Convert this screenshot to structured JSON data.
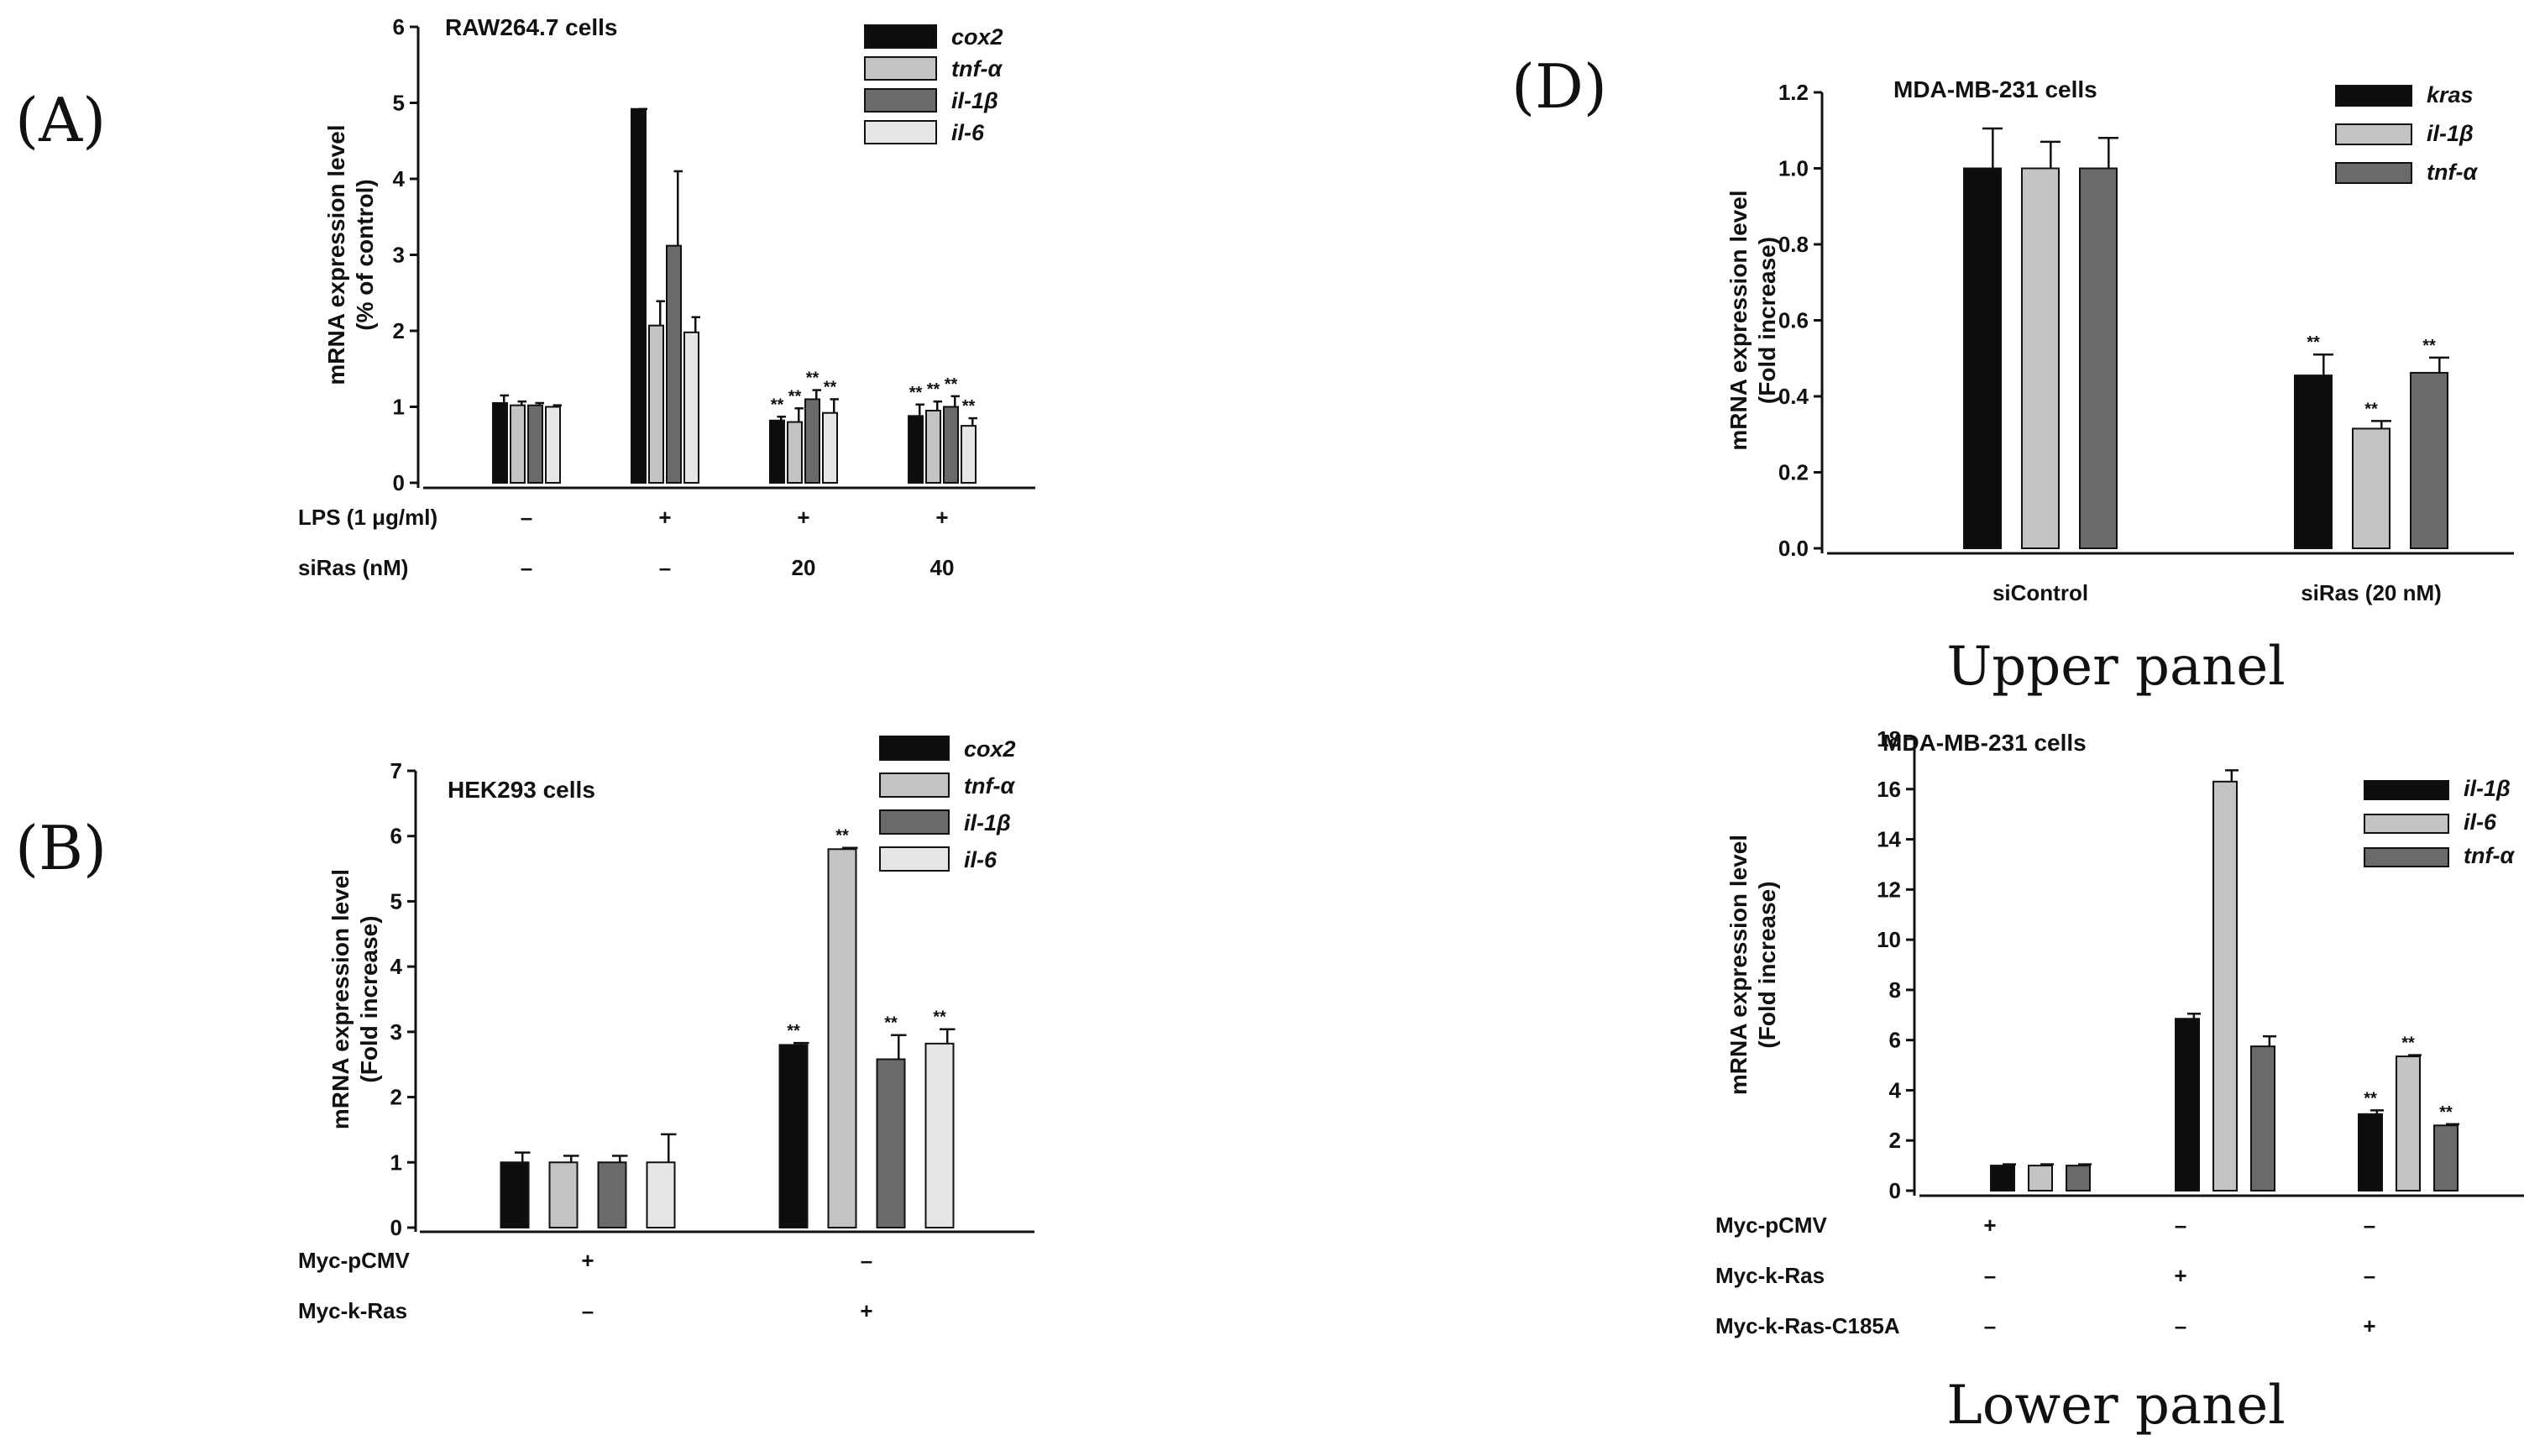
{
  "panel_letters": {
    "a": "(A)",
    "b": "(B)",
    "d": "(D)"
  },
  "captions": {
    "upper": "Upper panel",
    "lower": "Lower panel"
  },
  "colors": {
    "black": "#0d0d0d",
    "light_gray": "#c4c4c4",
    "dark_gray": "#6a6a6a",
    "lightest_gray": "#e6e6e6"
  },
  "chart_data": [
    {
      "id": "A",
      "type": "bar",
      "title": "RAW264.7 cells",
      "ylabel": [
        "mRNA expression level",
        "(% of control)"
      ],
      "ylim": [
        0,
        6
      ],
      "yticks": [
        "0",
        "1",
        "2",
        "3",
        "4",
        "5",
        "6"
      ],
      "series": [
        {
          "name": "cox2",
          "values": [
            1.05,
            4.92,
            0.82,
            0.88
          ],
          "errors": [
            0.1,
            0.0,
            0.05,
            0.15
          ],
          "color": "#0d0d0d"
        },
        {
          "name": "tnf-α",
          "values": [
            1.02,
            2.07,
            0.8,
            0.95
          ],
          "errors": [
            0.05,
            0.32,
            0.18,
            0.12
          ],
          "color": "#c4c4c4"
        },
        {
          "name": "il-1β",
          "values": [
            1.02,
            3.12,
            1.1,
            1.0
          ],
          "errors": [
            0.03,
            0.98,
            0.12,
            0.14
          ],
          "color": "#6a6a6a"
        },
        {
          "name": "il-6",
          "values": [
            1.0,
            1.98,
            0.92,
            0.75
          ],
          "errors": [
            0.02,
            0.2,
            0.18,
            0.1
          ],
          "color": "#e6e6e6"
        }
      ],
      "stars": [
        [
          null,
          null,
          "**",
          "**"
        ],
        [
          null,
          null,
          "**",
          "**"
        ],
        [
          null,
          null,
          "**",
          "**"
        ],
        [
          null,
          null,
          "**",
          "**"
        ]
      ],
      "conditions": [
        {
          "label": "LPS (1 μg/ml)",
          "cells": [
            "–",
            "+",
            "+",
            "+"
          ]
        },
        {
          "label": "siRas (nM)",
          "cells": [
            "–",
            "–",
            "20",
            "40"
          ]
        }
      ]
    },
    {
      "id": "B",
      "type": "bar",
      "title": "HEK293 cells",
      "ylabel": [
        "mRNA expression level",
        "(Fold increase)"
      ],
      "ylim": [
        0,
        7
      ],
      "yticks": [
        "0",
        "1",
        "2",
        "3",
        "4",
        "5",
        "6",
        "7"
      ],
      "series": [
        {
          "name": "cox2",
          "values": [
            1.0,
            2.8
          ],
          "errors": [
            0.15,
            0.03
          ],
          "color": "#0d0d0d"
        },
        {
          "name": "tnf-α",
          "values": [
            1.0,
            5.8
          ],
          "errors": [
            0.1,
            0.02
          ],
          "color": "#c4c4c4"
        },
        {
          "name": "il-1β",
          "values": [
            1.0,
            2.58
          ],
          "errors": [
            0.1,
            0.37
          ],
          "color": "#6a6a6a"
        },
        {
          "name": "il-6",
          "values": [
            1.0,
            2.82
          ],
          "errors": [
            0.43,
            0.22
          ],
          "color": "#e6e6e6"
        }
      ],
      "stars": [
        [
          null,
          "**"
        ],
        [
          null,
          "**"
        ],
        [
          null,
          "**"
        ],
        [
          null,
          "**"
        ]
      ],
      "conditions": [
        {
          "label": "Myc-pCMV",
          "cells": [
            "+",
            "–"
          ]
        },
        {
          "label": "Myc-k-Ras",
          "cells": [
            "–",
            "+"
          ]
        }
      ]
    },
    {
      "id": "D-upper",
      "type": "bar",
      "title": "MDA-MB-231 cells",
      "ylabel": [
        "mRNA expression level",
        "(Fold increase)"
      ],
      "ylim": [
        0,
        1.2
      ],
      "yticks": [
        "0.0",
        "0.2",
        "0.4",
        "0.6",
        "0.8",
        "1.0",
        "1.2"
      ],
      "categories": [
        "siControl",
        "siRas (20 nM)"
      ],
      "series": [
        {
          "name": "kras",
          "values": [
            1.0,
            0.455
          ],
          "errors": [
            0.105,
            0.055
          ],
          "color": "#0d0d0d"
        },
        {
          "name": "il-1β",
          "values": [
            1.0,
            0.315
          ],
          "errors": [
            0.07,
            0.02
          ],
          "color": "#c4c4c4"
        },
        {
          "name": "tnf-α",
          "values": [
            1.0,
            0.462
          ],
          "errors": [
            0.08,
            0.04
          ],
          "color": "#6a6a6a"
        }
      ],
      "stars": [
        [
          null,
          "**"
        ],
        [
          null,
          "**"
        ],
        [
          null,
          "**"
        ]
      ]
    },
    {
      "id": "D-lower",
      "type": "bar",
      "title": "MDA-MB-231 cells",
      "ylabel": [
        "mRNA expression level",
        "(Fold increase)"
      ],
      "ylim": [
        0,
        18
      ],
      "yticks": [
        "0",
        "2",
        "4",
        "6",
        "8",
        "10",
        "12",
        "14",
        "16",
        "18"
      ],
      "series": [
        {
          "name": "il-1β",
          "values": [
            1.0,
            6.85,
            3.05
          ],
          "errors": [
            0.05,
            0.2,
            0.15
          ],
          "color": "#0d0d0d"
        },
        {
          "name": "il-6",
          "values": [
            1.0,
            16.3,
            5.35
          ],
          "errors": [
            0.05,
            0.45,
            0.05
          ],
          "color": "#c4c4c4"
        },
        {
          "name": "tnf-α",
          "values": [
            1.0,
            5.75,
            2.6
          ],
          "errors": [
            0.05,
            0.4,
            0.05
          ],
          "color": "#6a6a6a"
        }
      ],
      "stars": [
        [
          null,
          null,
          "**"
        ],
        [
          null,
          null,
          "**"
        ],
        [
          null,
          null,
          "**"
        ]
      ],
      "conditions": [
        {
          "label": "Myc-pCMV",
          "cells": [
            "+",
            "–",
            "–"
          ]
        },
        {
          "label": "Myc-k-Ras",
          "cells": [
            "–",
            "+",
            "–"
          ]
        },
        {
          "label": "Myc-k-Ras-C185A",
          "cells": [
            "–",
            "–",
            "+"
          ]
        }
      ]
    }
  ]
}
